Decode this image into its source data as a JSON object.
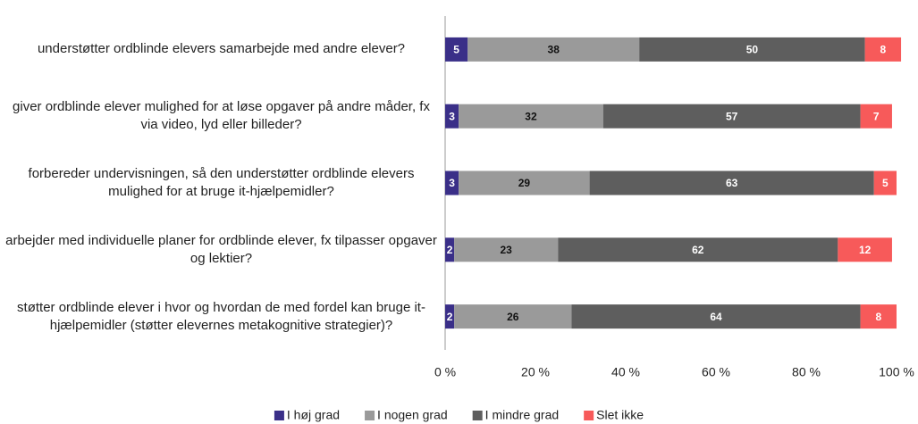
{
  "chart_data": {
    "type": "stacked_bar_horizontal",
    "categories": [
      "understøtter ordblinde elevers samarbejde med andre elever?",
      "giver ordblinde elever mulighed for at løse opgaver på andre måder, fx via video, lyd eller billeder?",
      "forbereder undervisningen, så den understøtter ordblinde elevers mulighed for at bruge it-hjælpemidler?",
      "arbejder med individuelle planer for ordblinde elever, fx tilpasser opgaver og lektier?",
      "støtter ordblinde elever i hvor og hvordan de med fordel kan bruge it-hjælpemidler (støtter elevernes metakognitive strategier)?"
    ],
    "series": [
      {
        "name": "I høj grad",
        "color": "#3a2f88",
        "values": [
          5,
          3,
          3,
          2,
          2
        ]
      },
      {
        "name": "I nogen grad",
        "color": "#9a9a9a",
        "values": [
          38,
          32,
          29,
          23,
          26
        ]
      },
      {
        "name": "I mindre grad",
        "color": "#5e5e5e",
        "values": [
          50,
          57,
          63,
          62,
          64
        ]
      },
      {
        "name": "Slet ikke",
        "color": "#f75a5a",
        "values": [
          8,
          7,
          5,
          12,
          8
        ]
      }
    ],
    "xlim": [
      0,
      100
    ],
    "xticks": [
      {
        "value": 0,
        "label": "0 %"
      },
      {
        "value": 20,
        "label": "20 %"
      },
      {
        "value": 40,
        "label": "40 %"
      },
      {
        "value": 60,
        "label": "60 %"
      },
      {
        "value": 80,
        "label": "80 %"
      },
      {
        "value": 100,
        "label": "100 %"
      }
    ],
    "legend": "bottom"
  }
}
